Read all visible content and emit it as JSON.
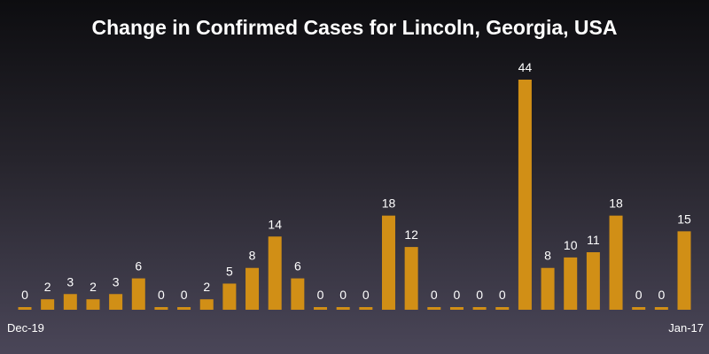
{
  "chart_data": {
    "type": "bar",
    "title": "Change in Confirmed Cases for Lincoln, Georgia, USA",
    "x_tick_labels": [
      "Dec-19",
      "Jan-17"
    ],
    "values": [
      0,
      2,
      3,
      2,
      3,
      6,
      0,
      0,
      2,
      5,
      8,
      14,
      6,
      0,
      0,
      0,
      18,
      12,
      0,
      0,
      0,
      0,
      44,
      8,
      10,
      11,
      18,
      0,
      0,
      15
    ],
    "ylim": [
      0,
      44
    ],
    "grid": false,
    "bar_color": "#d18f16"
  },
  "colors": {
    "text": "#ffffff",
    "background_top": "#0d0d10",
    "background_bottom": "#4a4658"
  }
}
